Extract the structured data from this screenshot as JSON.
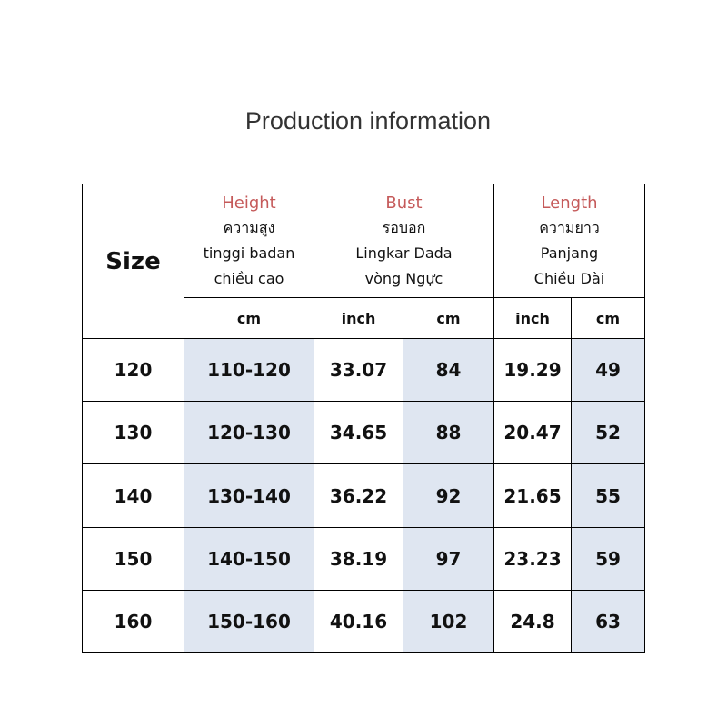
{
  "title": "Production information",
  "table": {
    "size_header": "Size",
    "groups": [
      {
        "name": "Height",
        "lines": [
          "ความสูง",
          "tinggi badan",
          "chiều cao"
        ],
        "units": [
          "cm"
        ]
      },
      {
        "name": "Bust",
        "lines": [
          "รอบอก",
          "Lingkar Dada",
          "vòng Ngực"
        ],
        "units": [
          "inch",
          "cm"
        ]
      },
      {
        "name": "Length",
        "lines": [
          "ความยาว",
          "Panjang",
          "Chiều Dài"
        ],
        "units": [
          "inch",
          "cm"
        ]
      }
    ],
    "rows": [
      [
        "120",
        "110-120",
        "33.07",
        "84",
        "19.29",
        "49"
      ],
      [
        "130",
        "120-130",
        "34.65",
        "88",
        "20.47",
        "52"
      ],
      [
        "140",
        "130-140",
        "36.22",
        "92",
        "21.65",
        "55"
      ],
      [
        "150",
        "140-150",
        "38.19",
        "97",
        "23.23",
        "59"
      ],
      [
        "160",
        "150-160",
        "40.16",
        "102",
        "24.8",
        "63"
      ]
    ]
  }
}
